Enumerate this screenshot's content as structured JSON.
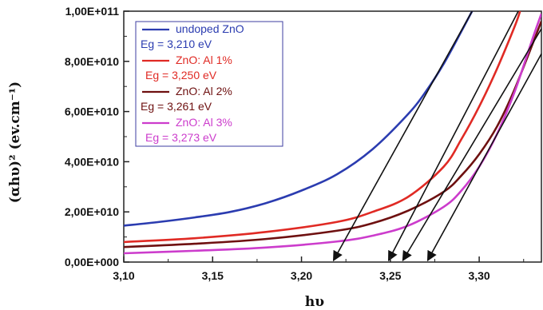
{
  "chart_data": {
    "type": "line",
    "xlabel": "hυ",
    "ylabel": "(αhυ)² (ev.cm⁻¹)",
    "xlim": [
      3.1,
      3.335
    ],
    "ylim": [
      0,
      100000000000.0
    ],
    "x_ticks": [
      "3,10",
      "3,15",
      "3,20",
      "3,25",
      "3,30"
    ],
    "x_tick_values": [
      3.1,
      3.15,
      3.2,
      3.25,
      3.3
    ],
    "y_ticks": [
      "0,00E+000",
      "2,00E+010",
      "4,00E+010",
      "6,00E+010",
      "8,00E+010",
      "1,00E+011"
    ],
    "y_tick_values": [
      0,
      20000000000.0,
      40000000000.0,
      60000000000.0,
      80000000000.0,
      100000000000.0
    ],
    "legend_position": "top-left",
    "series": [
      {
        "name": "undoped ZnO",
        "eg_label": "Eg = 3,210 eV",
        "color": "#2b3cb0",
        "x": [
          3.1,
          3.12,
          3.14,
          3.16,
          3.18,
          3.2,
          3.22,
          3.24,
          3.26,
          3.27,
          3.28,
          3.29,
          3.296
        ],
        "y": [
          14500000000.0,
          16000000000.0,
          17800000000.0,
          20000000000.0,
          23500000000.0,
          28500000000.0,
          35000000000.0,
          45000000000.0,
          59000000000.0,
          68000000000.0,
          79000000000.0,
          92000000000.0,
          100000000000.0
        ]
      },
      {
        "name": "ZnO: Al 1%",
        "eg_label": "Eg = 3,250 eV",
        "color": "#e02a24",
        "x": [
          3.1,
          3.14,
          3.18,
          3.22,
          3.24,
          3.26,
          3.28,
          3.29,
          3.3,
          3.31,
          3.32,
          3.323
        ],
        "y": [
          8000000000.0,
          9500000000.0,
          12000000000.0,
          16000000000.0,
          20000000000.0,
          26000000000.0,
          38000000000.0,
          49000000000.0,
          62000000000.0,
          77000000000.0,
          94000000000.0,
          100000000000.0
        ]
      },
      {
        "name": "ZnO: Al 2%",
        "eg_label": "Eg = 3,261 eV",
        "color": "#6e1010",
        "x": [
          3.1,
          3.14,
          3.18,
          3.22,
          3.24,
          3.26,
          3.28,
          3.29,
          3.3,
          3.31,
          3.32,
          3.335
        ],
        "y": [
          6000000000.0,
          7300000000.0,
          9200000000.0,
          12500000000.0,
          15500000000.0,
          20500000000.0,
          28000000000.0,
          34500000000.0,
          43000000000.0,
          54000000000.0,
          69000000000.0,
          96000000000.0
        ]
      },
      {
        "name": "ZnO: Al 3%",
        "eg_label": "Eg = 3,273 eV",
        "color": "#cc3ccc",
        "x": [
          3.1,
          3.14,
          3.18,
          3.22,
          3.24,
          3.26,
          3.28,
          3.29,
          3.3,
          3.31,
          3.32,
          3.33,
          3.335
        ],
        "y": [
          3500000000.0,
          4500000000.0,
          5800000000.0,
          8200000000.0,
          10500000000.0,
          14500000000.0,
          22000000000.0,
          28500000000.0,
          38000000000.0,
          51000000000.0,
          68000000000.0,
          89000000000.0,
          99000000000.0
        ]
      }
    ],
    "tangent_lines": [
      {
        "x": [
          3.218,
          3.296
        ],
        "y": [
          0,
          100000000000.0
        ]
      },
      {
        "x": [
          3.249,
          3.322
        ],
        "y": [
          0,
          100000000000.0
        ]
      },
      {
        "x": [
          3.257,
          3.335
        ],
        "y": [
          0,
          93000000000.0
        ]
      },
      {
        "x": [
          3.271,
          3.335
        ],
        "y": [
          0,
          83000000000.0
        ]
      }
    ]
  }
}
